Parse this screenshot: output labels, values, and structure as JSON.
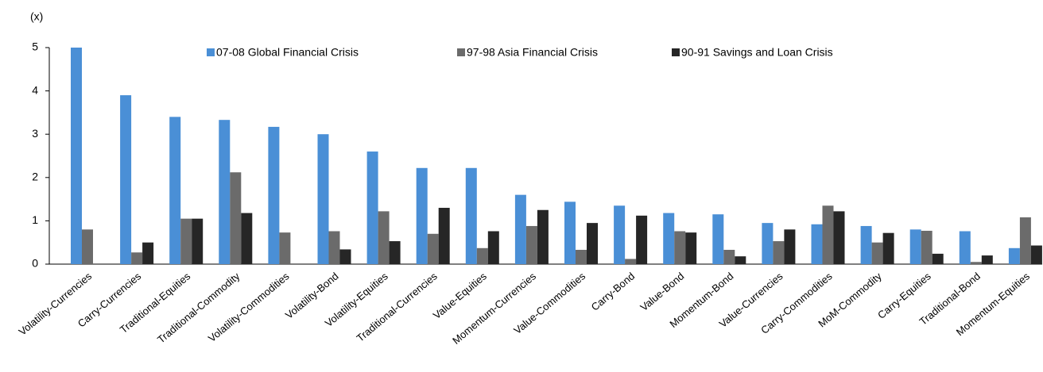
{
  "chart_data": {
    "type": "bar",
    "y_axis_label": "(x)",
    "categories": [
      "Volatility-Currencies",
      "Carry-Currencies",
      "Traditional-Equities",
      "Traditional-Commodity",
      "Volatility-Commodities",
      "Volatility-Bond",
      "Volatility-Equities",
      "Traditional-Currencies",
      "Value-Equities",
      "Momentum-Currencies",
      "Value-Commodities",
      "Carry-Bond",
      "Value-Bond",
      "Momentum-Bond",
      "Value-Currencies",
      "Carry-Commodities",
      "MoM-Commodity",
      "Carry-Equities",
      "Traditional-Bond",
      "Momentum-Equities"
    ],
    "series": [
      {
        "name": "07-08 Global Financial Crisis",
        "color": "#4a8fd6",
        "values": [
          5.0,
          3.9,
          3.4,
          3.33,
          3.17,
          3.0,
          2.6,
          2.22,
          2.22,
          1.6,
          1.44,
          1.35,
          1.18,
          1.15,
          0.95,
          0.92,
          0.88,
          0.8,
          0.76,
          0.37
        ]
      },
      {
        "name": "97-98 Asia Financial Crisis",
        "color": "#6b6b6b",
        "values": [
          0.8,
          0.27,
          1.05,
          2.12,
          0.73,
          0.76,
          1.22,
          0.7,
          0.37,
          0.88,
          0.33,
          0.12,
          0.76,
          0.33,
          0.53,
          1.35,
          0.5,
          0.77,
          0.05,
          1.08
        ]
      },
      {
        "name": "90-91 Savings and Loan Crisis",
        "color": "#262626",
        "values": [
          0,
          0.5,
          1.05,
          1.18,
          0,
          0.34,
          0.53,
          1.3,
          0.76,
          1.25,
          0.95,
          1.12,
          0.73,
          0.18,
          0.8,
          1.22,
          0.72,
          0.24,
          0.2,
          0.43
        ]
      }
    ],
    "ylim": [
      0,
      5
    ],
    "yticks": [
      0,
      1,
      2,
      3,
      4,
      5
    ],
    "grid": false,
    "legend": "top"
  }
}
